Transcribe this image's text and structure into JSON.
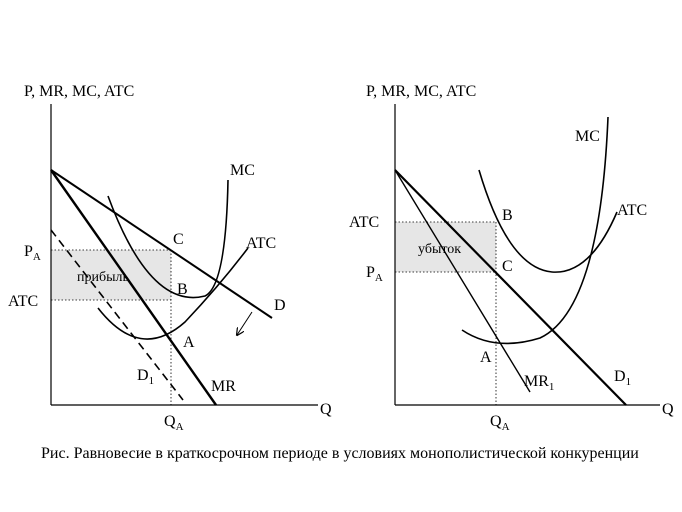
{
  "left_graph": {
    "y_axis_label": "P, MR, MC, ATC",
    "x_axis_label": "Q",
    "label_mc": "MC",
    "label_atc_curve": "ATC",
    "label_d": "D",
    "label_mr": "MR",
    "label_d1": "D",
    "label_d1_sub": "1",
    "label_pa": "P",
    "label_pa_sub": "A",
    "label_atc_axis": "ATC",
    "label_qa": "Q",
    "label_qa_sub": "A",
    "label_point_a": "A",
    "label_point_b": "B",
    "label_point_c": "C",
    "region_label": "прибыль"
  },
  "right_graph": {
    "y_axis_label": "P, MR, MC, ATC",
    "x_axis_label": "Q",
    "label_mc": "MC",
    "label_atc_curve": "ATC",
    "label_d1": "D",
    "label_d1_sub": "1",
    "label_mr1": "MR",
    "label_mr1_sub": "1",
    "label_atc_axis": "ATC",
    "label_pa": "P",
    "label_pa_sub": "A",
    "label_qa": "Q",
    "label_qa_sub": "A",
    "label_point_a": "A",
    "label_point_b": "B",
    "label_point_c": "C",
    "region_label": "убыток"
  },
  "caption": "Рис. Равновесие в краткосрочном периоде в условиях монополистической конкуренции",
  "colors": {
    "line": "#000000",
    "shade": "#e6e6e6",
    "guide": "#000000"
  }
}
